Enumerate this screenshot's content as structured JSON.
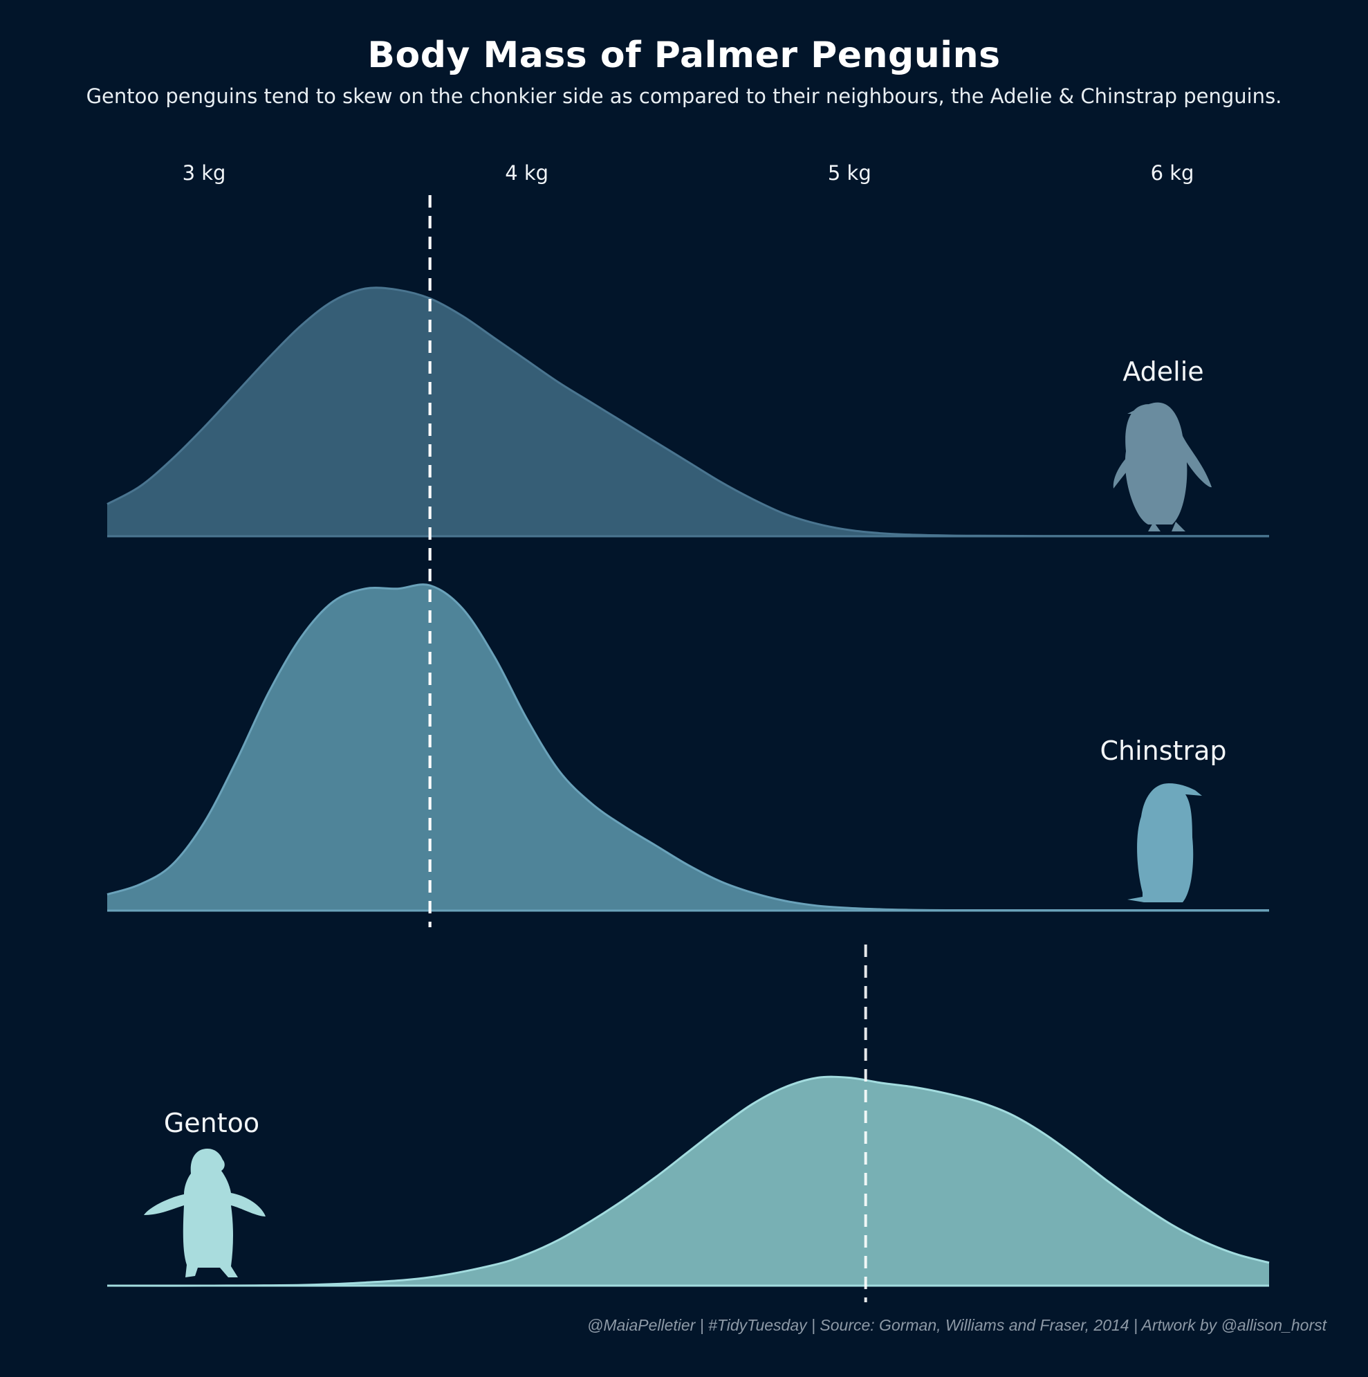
{
  "colors": {
    "background": "#02152a",
    "adelie_fill": "#365e76",
    "adelie_line": "#4a7590",
    "chinstrap_fill": "#4f8499",
    "chinstrap_line": "#6aa2ba",
    "gentoo_fill": "#78b0b4",
    "gentoo_line": "#a3dcdf",
    "median_line": "#ffffff",
    "adelie_icon": "#6a8c9f",
    "chinstrap_icon": "#6ea8bd",
    "gentoo_icon": "#a9dcdd"
  },
  "chart_data": {
    "type": "area",
    "title": "Body Mass of Palmer Penguins",
    "subtitle": "Gentoo penguins tend to skew on the chonkier side as compared to their neighbours, the Adelie & Chinstrap penguins.",
    "caption": "@MaiaPelletier | #TidyTuesday | Source: Gorman, Williams and Fraser, 2014 | Artwork by @allison_horst",
    "xlim": [
      2700,
      6300
    ],
    "x_ticks": [
      {
        "value": 3000,
        "label": "3 kg"
      },
      {
        "value": 4000,
        "label": "4 kg"
      },
      {
        "value": 5000,
        "label": "5 kg"
      },
      {
        "value": 6000,
        "label": "6 kg"
      }
    ],
    "grid": false,
    "legend": "none",
    "series": [
      {
        "name": "Adelie",
        "median": 3700,
        "icon": "adelie-penguin-icon",
        "x": [
          2700,
          2800,
          2900,
          3000,
          3100,
          3200,
          3300,
          3400,
          3500,
          3600,
          3700,
          3800,
          3900,
          4000,
          4100,
          4200,
          4300,
          4400,
          4500,
          4600,
          4700,
          4800,
          4900,
          5000,
          5100,
          5200,
          5300,
          5400,
          5600,
          5800,
          6000,
          6300
        ],
        "density": [
          0.13,
          0.2,
          0.31,
          0.44,
          0.58,
          0.72,
          0.85,
          0.95,
          1.0,
          0.995,
          0.96,
          0.89,
          0.8,
          0.71,
          0.62,
          0.54,
          0.46,
          0.38,
          0.3,
          0.22,
          0.15,
          0.09,
          0.05,
          0.025,
          0.012,
          0.006,
          0.003,
          0.002,
          0.001,
          0.001,
          0.001,
          0.001
        ]
      },
      {
        "name": "Chinstrap",
        "median": 3700,
        "icon": "chinstrap-penguin-icon",
        "x": [
          2700,
          2800,
          2900,
          3000,
          3100,
          3200,
          3300,
          3400,
          3500,
          3600,
          3700,
          3800,
          3900,
          4000,
          4100,
          4200,
          4300,
          4400,
          4500,
          4600,
          4700,
          4800,
          4900,
          5000,
          5100,
          5200,
          5300,
          5400,
          5600,
          5800,
          6000,
          6300
        ],
        "density": [
          0.05,
          0.08,
          0.14,
          0.27,
          0.46,
          0.67,
          0.84,
          0.95,
          0.99,
          0.99,
          1.0,
          0.93,
          0.78,
          0.59,
          0.43,
          0.33,
          0.26,
          0.2,
          0.14,
          0.09,
          0.055,
          0.03,
          0.015,
          0.008,
          0.004,
          0.002,
          0.001,
          0.001,
          0.001,
          0.001,
          0.001,
          0.001
        ]
      },
      {
        "name": "Gentoo",
        "median": 5050,
        "icon": "gentoo-penguin-icon",
        "x": [
          2700,
          3000,
          3300,
          3500,
          3700,
          3900,
          4000,
          4100,
          4200,
          4300,
          4400,
          4500,
          4600,
          4700,
          4800,
          4900,
          5000,
          5100,
          5200,
          5300,
          5400,
          5500,
          5600,
          5700,
          5800,
          5900,
          6000,
          6100,
          6200,
          6300
        ],
        "density": [
          0.0,
          0.0,
          0.003,
          0.015,
          0.04,
          0.1,
          0.15,
          0.22,
          0.31,
          0.41,
          0.52,
          0.64,
          0.76,
          0.87,
          0.95,
          0.995,
          0.995,
          0.97,
          0.95,
          0.92,
          0.88,
          0.82,
          0.73,
          0.62,
          0.5,
          0.39,
          0.29,
          0.21,
          0.15,
          0.11
        ]
      }
    ]
  }
}
